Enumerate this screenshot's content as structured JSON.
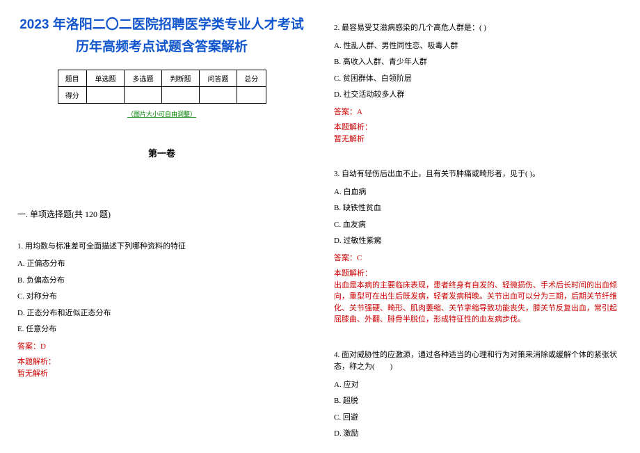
{
  "title": "2023 年洛阳二〇二医院招聘医学类专业人才考试历年高频考点试题含答案解析",
  "table": {
    "row1": [
      "题目",
      "单选题",
      "多选题",
      "判断题",
      "问答题",
      "总分"
    ],
    "row2_head": "得分"
  },
  "note": "（图片大小可自由调整）",
  "volume": "第一卷",
  "section": "一. 单项选择题(共 120 题)",
  "q1": {
    "stem": "1. 用均数与标准差可全面描述下列哪种资料的特征",
    "a": "A. 正偏态分布",
    "b": "B. 负偏态分布",
    "c": "C. 对称分布",
    "d": "D. 正态分布和近似正态分布",
    "e": "E. 任意分布",
    "ans": "答案：D",
    "exp_label": "本题解析：",
    "exp": "暂无解析"
  },
  "q2": {
    "stem": "2. 最容易受艾滋病感染的几个高危人群是：( )",
    "a": "A. 性乱人群、男性同性恋、吸毒人群",
    "b": "B. 高收入人群、青少年人群",
    "c": "C. 贫困群体、白领阶层",
    "d": "D. 社交活动较多人群",
    "ans": "答案：A",
    "exp_label": "本题解析：",
    "exp": "暂无解析"
  },
  "q3": {
    "stem": "3. 自幼有轻伤后出血不止，且有关节肿痛或畸形者，见于( )。",
    "a": "A. 白血病",
    "b": "B. 缺铁性贫血",
    "c": "C. 血友病",
    "d": "D. 过敏性紫癜",
    "ans": "答案：C",
    "exp_label": "本题解析：",
    "exp": "出血是本病的主要临床表现，患者终身有自发的、轻微损伤、手术后长时间的出血倾向，重型可在出生后既发病，轻者发病稍晚。关节出血可以分为三期，后期关节纤维化、关节强硬、畸形、肌肉萎缩、关节挛缩导致功能丧失，膝关节反复出血，常引起屈膝曲、外翻、腓骨半脱位，形成特征性的血友病步伐。"
  },
  "q4": {
    "stem": "4. 面对威胁性的应激源，通过各种适当的心理和行为对策来消除或缓解个体的紧张状态，称之为(　　)",
    "a": "A. 应对",
    "b": "B. 超脱",
    "c": "C. 回避",
    "d": "D. 激励"
  },
  "colors": {
    "title": "#1155cc",
    "answer": "#cc0000",
    "note": "#008000"
  }
}
